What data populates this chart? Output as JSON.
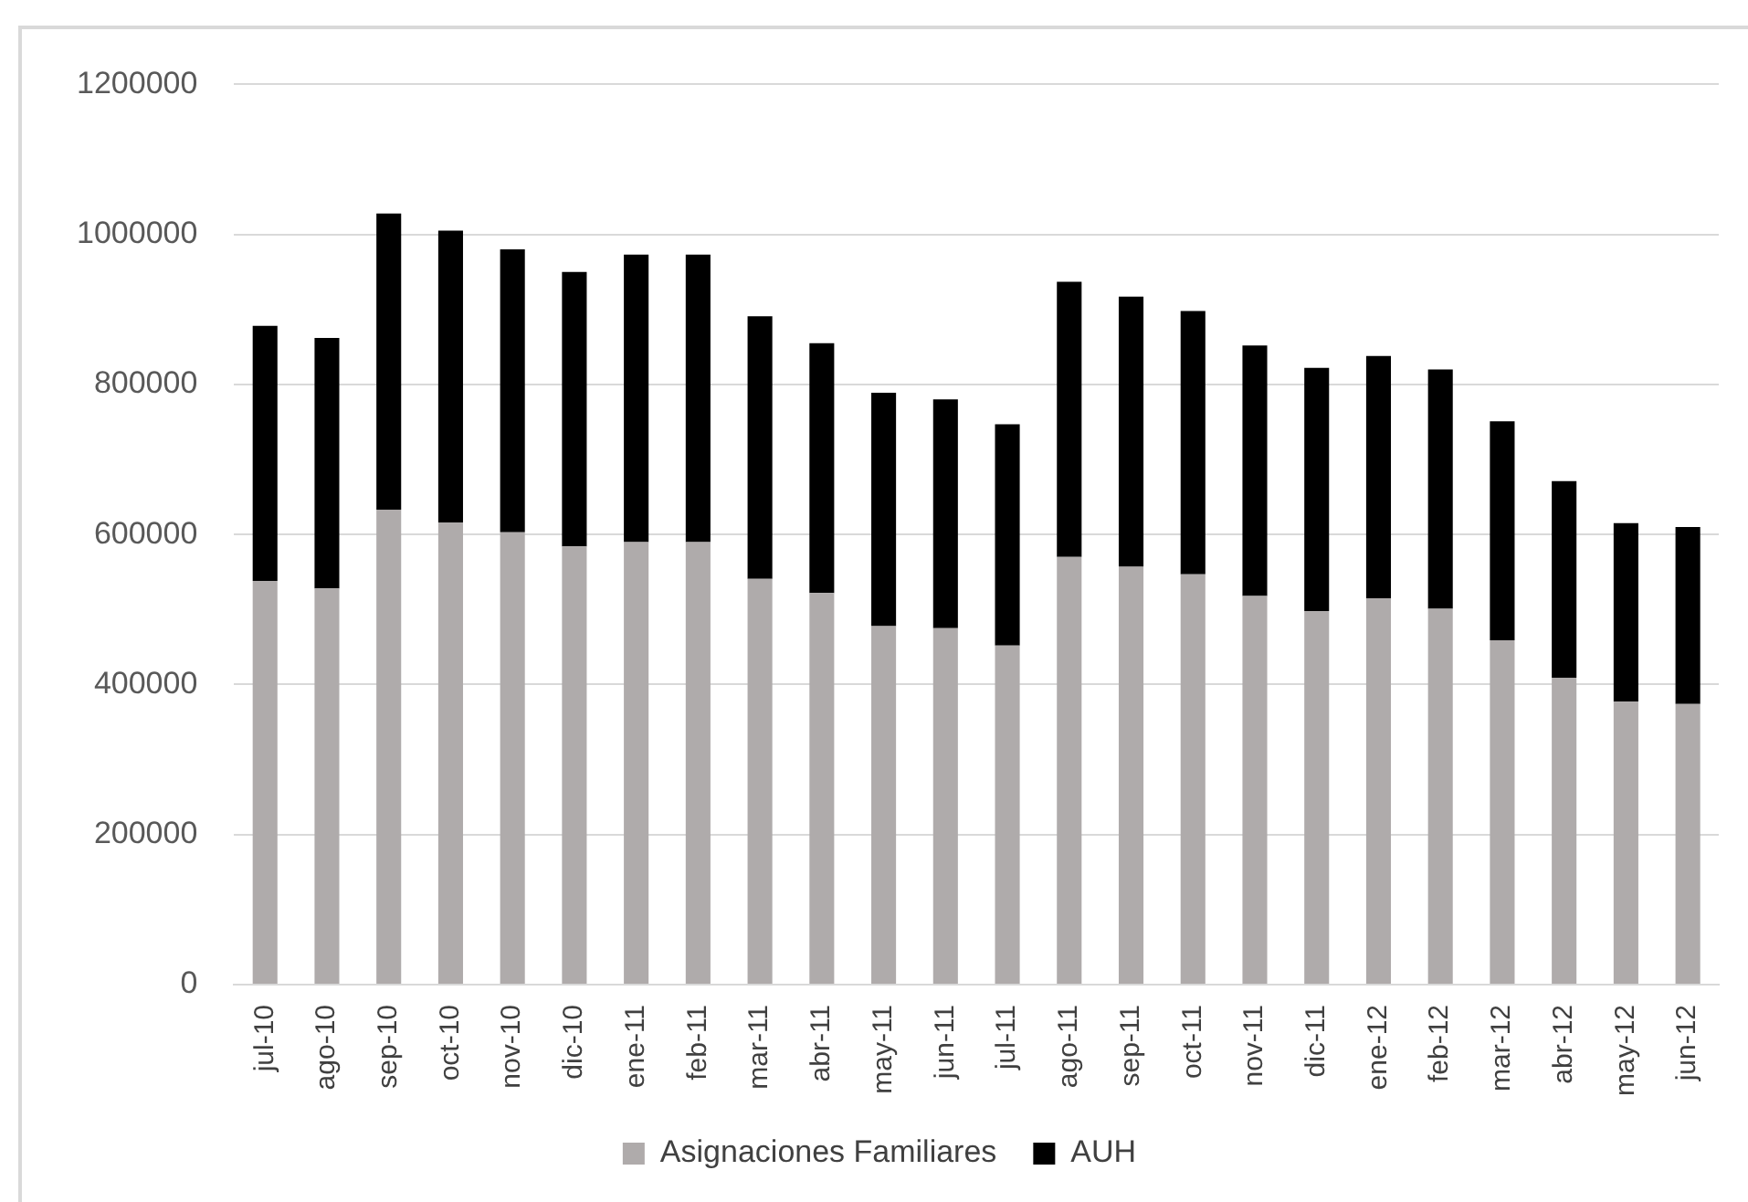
{
  "chart_data": {
    "type": "bar",
    "stacked": true,
    "categories": [
      "jul-10",
      "ago-10",
      "sep-10",
      "oct-10",
      "nov-10",
      "dic-10",
      "ene-11",
      "feb-11",
      "mar-11",
      "abr-11",
      "may-11",
      "jun-11",
      "jul-11",
      "ago-11",
      "sep-11",
      "oct-11",
      "nov-11",
      "dic-11",
      "ene-12",
      "feb-12",
      "mar-12",
      "abr-12",
      "may-12",
      "jun-12"
    ],
    "series": [
      {
        "name": "Asignaciones Familiares",
        "color": "#afabab",
        "values": [
          538000,
          528000,
          633000,
          616000,
          603000,
          584000,
          590000,
          590000,
          541000,
          522000,
          478000,
          475000,
          452000,
          570000,
          557000,
          547000,
          518000,
          498000,
          515000,
          501000,
          459000,
          409000,
          377000,
          374000
        ]
      },
      {
        "name": "AUH",
        "color": "#000000",
        "values": [
          340000,
          334000,
          395000,
          389000,
          377000,
          366000,
          383000,
          383000,
          350000,
          333000,
          311000,
          305000,
          295000,
          367000,
          360000,
          351000,
          334000,
          324000,
          323000,
          319000,
          292000,
          262000,
          238000,
          236000
        ]
      }
    ],
    "ylim": [
      0,
      1200000
    ],
    "yticks": [
      0,
      200000,
      400000,
      600000,
      800000,
      1000000,
      1200000
    ],
    "grid": "y",
    "legend": "bottom"
  }
}
